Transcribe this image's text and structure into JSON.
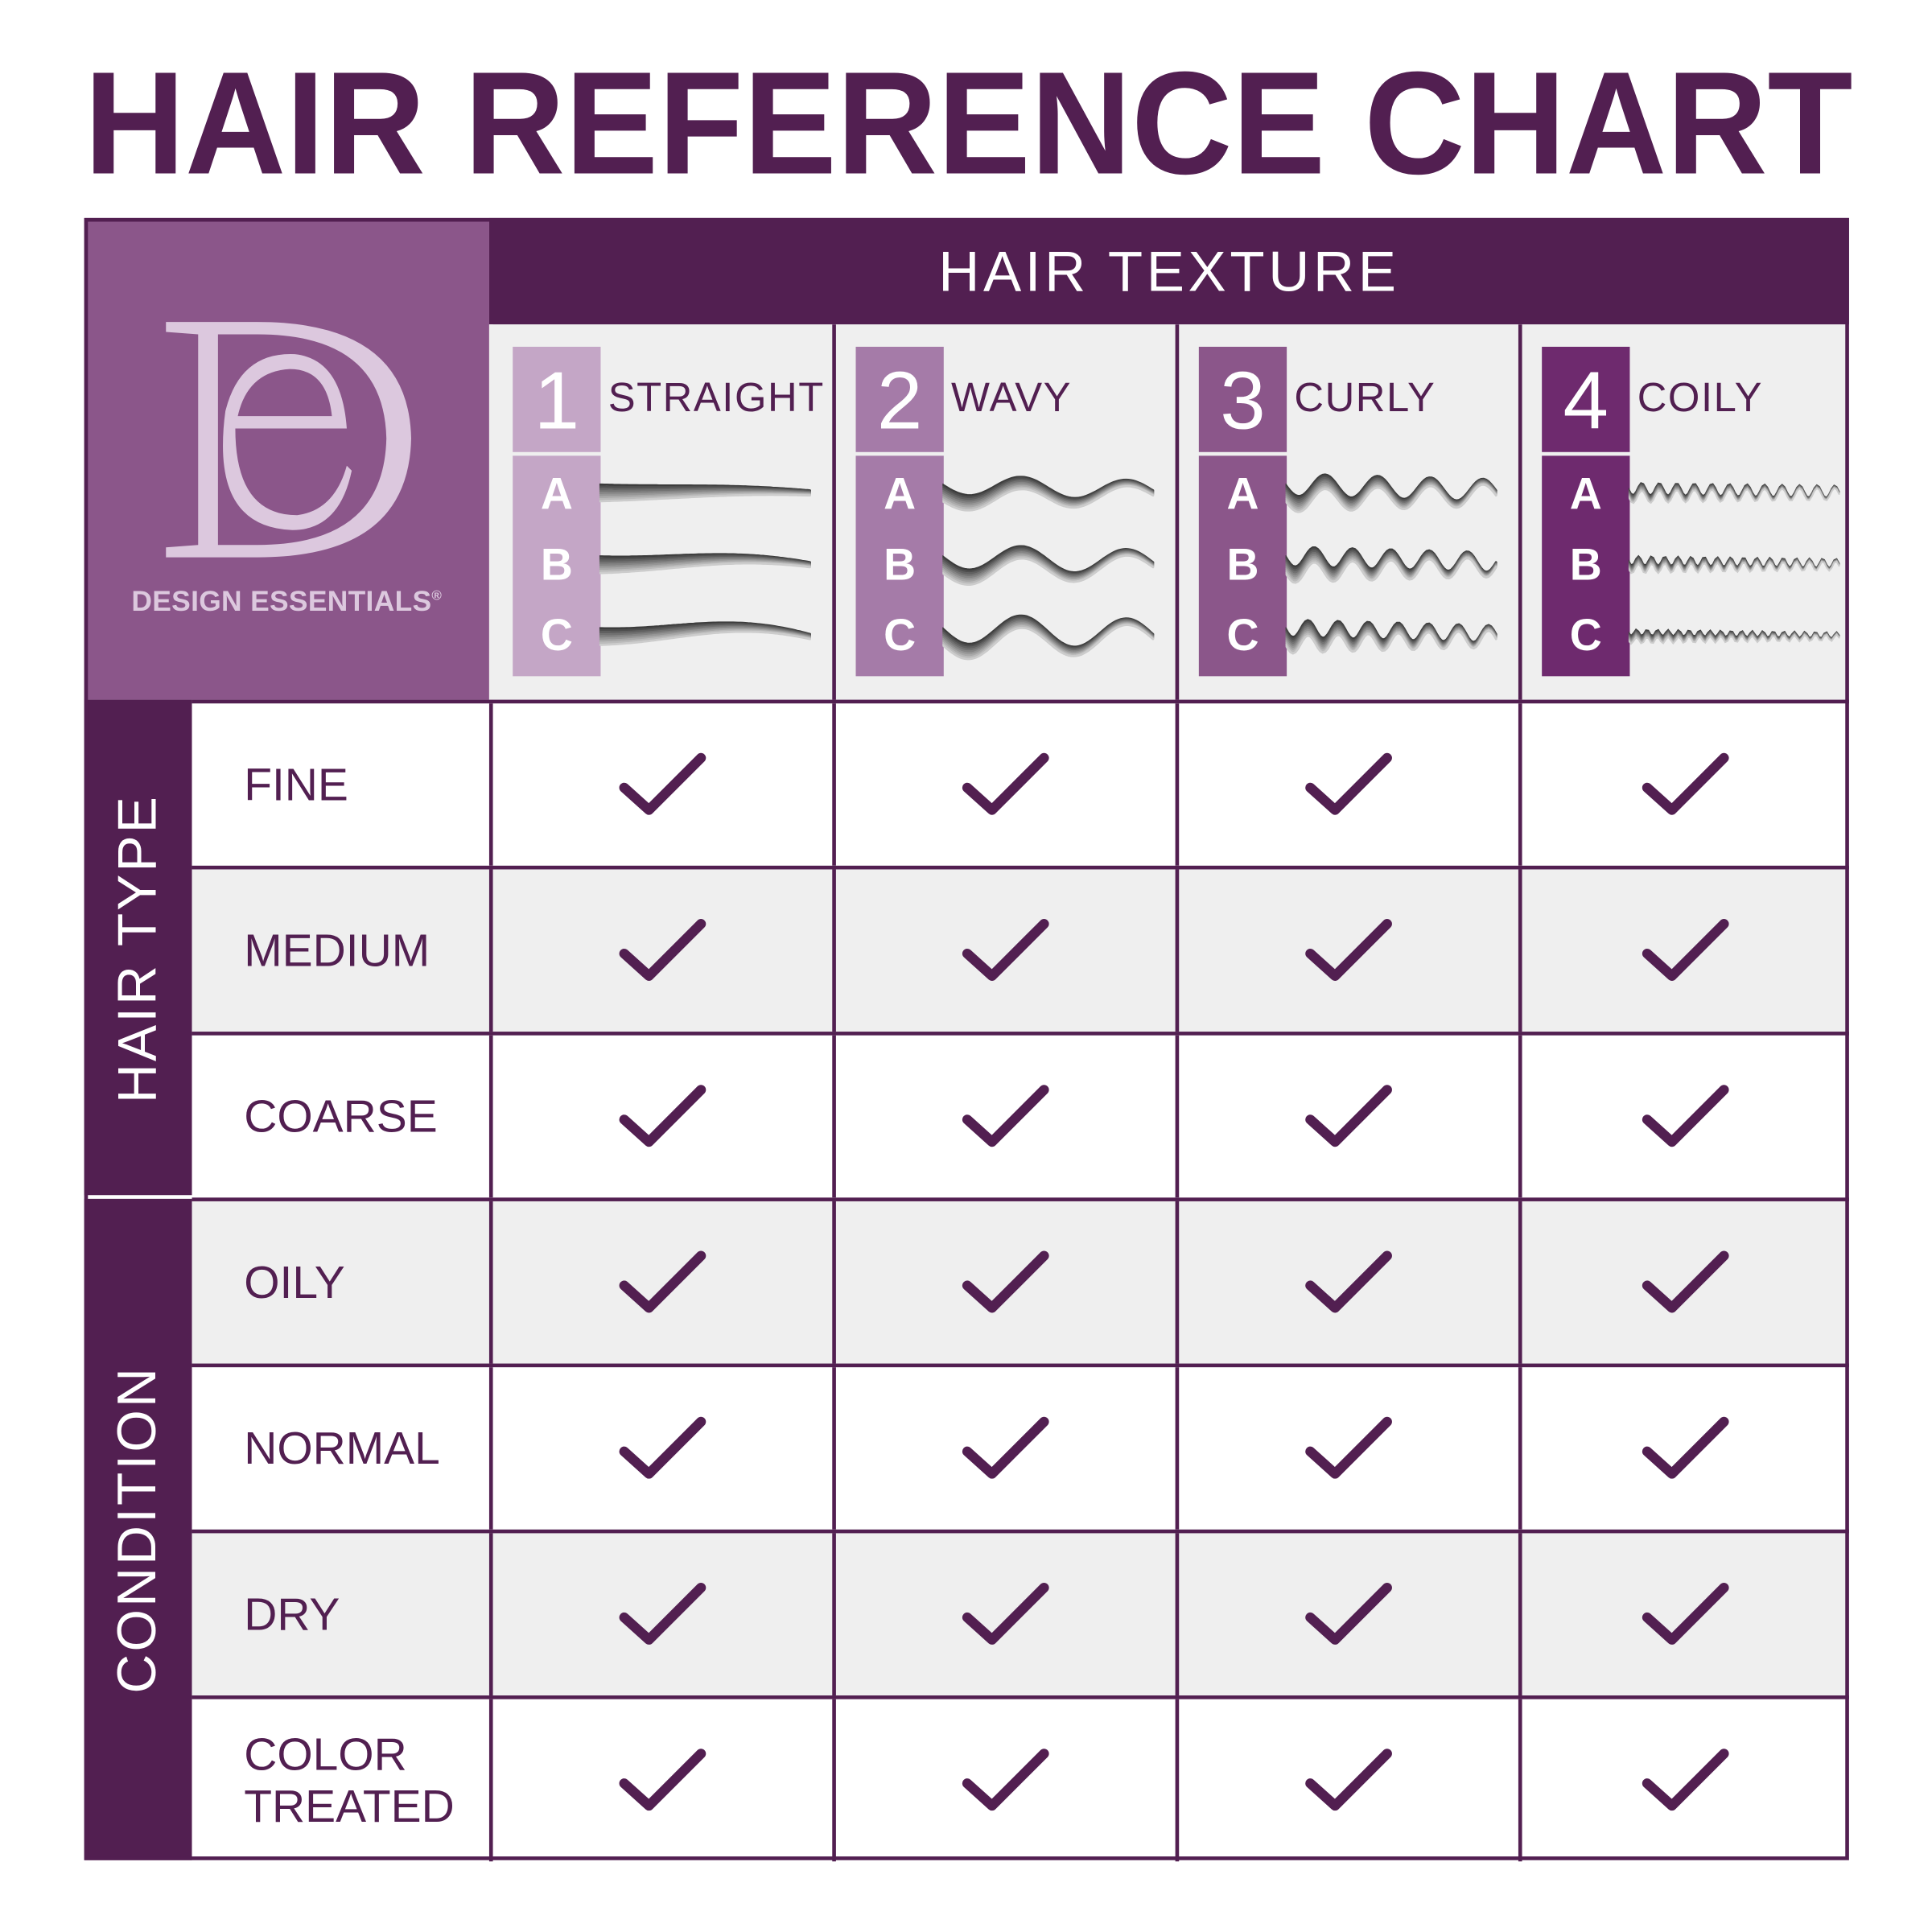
{
  "title": "HAIR REFERENCE CHART",
  "brand": {
    "name": "DESIGN ESSENTIALS",
    "registered": "®",
    "monogram": "DE"
  },
  "colors": {
    "dark_purple": "#521f51",
    "logo_purple": "#8b568a",
    "light_grey": "#efefef",
    "badge_1": "#c4a6c6",
    "badge_2": "#a57ba8",
    "badge_3": "#8b568a",
    "badge_4": "#6e2a6e"
  },
  "chart_data": {
    "type": "table",
    "column_group_label": "HAIR TEXTURE",
    "columns": [
      {
        "number": "1",
        "name": "STRAIGHT",
        "subtypes": [
          "A",
          "B",
          "C"
        ],
        "pattern": "straight"
      },
      {
        "number": "2",
        "name": "WAVY",
        "subtypes": [
          "A",
          "B",
          "C"
        ],
        "pattern": "wavy"
      },
      {
        "number": "3",
        "name": "CURLY",
        "subtypes": [
          "A",
          "B",
          "C"
        ],
        "pattern": "curly"
      },
      {
        "number": "4",
        "name": "COILY",
        "subtypes": [
          "A",
          "B",
          "C"
        ],
        "pattern": "coily"
      }
    ],
    "row_groups": [
      {
        "label": "HAIR TYPE",
        "rows": [
          {
            "label": "FINE",
            "values": [
              true,
              true,
              true,
              true
            ]
          },
          {
            "label": "MEDIUM",
            "values": [
              true,
              true,
              true,
              true
            ]
          },
          {
            "label": "COARSE",
            "values": [
              true,
              true,
              true,
              true
            ]
          }
        ]
      },
      {
        "label": "CONDITION",
        "rows": [
          {
            "label": "OILY",
            "values": [
              true,
              true,
              true,
              true
            ]
          },
          {
            "label": "NORMAL",
            "values": [
              true,
              true,
              true,
              true
            ]
          },
          {
            "label": "DRY",
            "values": [
              true,
              true,
              true,
              true
            ]
          },
          {
            "label": "COLOR TREATED",
            "label_lines": [
              "COLOR",
              "TREATED"
            ],
            "values": [
              true,
              true,
              true,
              true
            ]
          }
        ]
      }
    ]
  }
}
